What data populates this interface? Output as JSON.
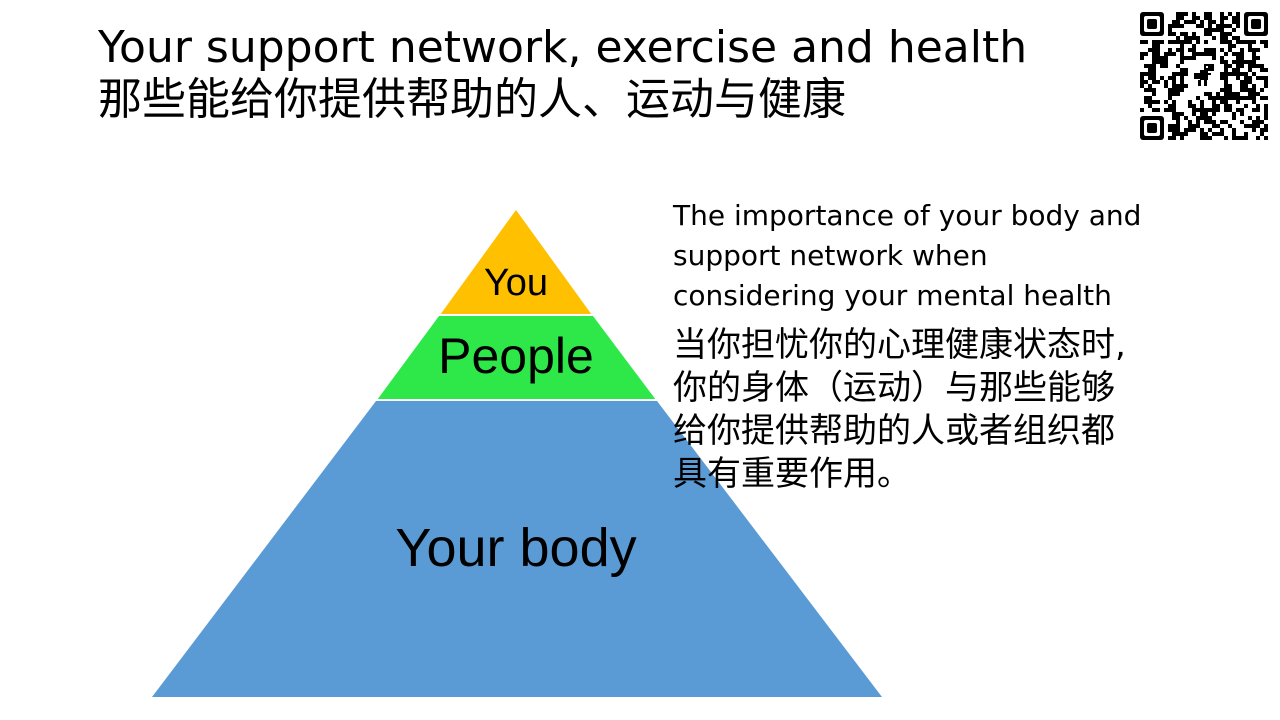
{
  "title": {
    "english": "Your support network, exercise and health",
    "chinese": "那些能给你提供帮助的人、运动与健康"
  },
  "pyramid": {
    "levels": [
      {
        "label": "You",
        "color": "#FFC000"
      },
      {
        "label": "People",
        "color": "#2EE84A"
      },
      {
        "label": "Your body",
        "color": "#5B9BD5"
      }
    ]
  },
  "info": {
    "english": "The importance of your body and\nsupport network when\nconsidering your mental health",
    "chinese": "当你担忧你的心理健康状态时,\n你的身体（运动）与那些能够\n给你提供帮助的人或者组织都\n具有重要作用。"
  },
  "qr_code": {
    "icon": "qr-code-icon",
    "center_icon": "dinosaur-icon"
  }
}
